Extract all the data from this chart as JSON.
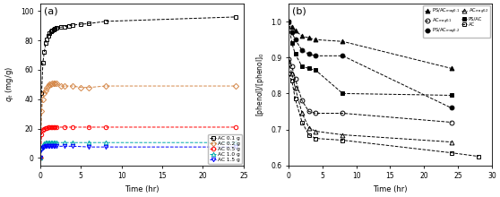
{
  "panel_a": {
    "title": "(a)",
    "xlabel": "Time (hr)",
    "ylabel": "$q_t$ (mg/g)",
    "xlim": [
      0,
      25
    ],
    "ylim": [
      -5,
      105
    ],
    "xticks": [
      0,
      5,
      10,
      15,
      20,
      25
    ],
    "yticks": [
      0,
      20,
      40,
      60,
      80,
      100
    ],
    "series": [
      {
        "label": "AC 0.1 g",
        "color": "black",
        "marker": "s",
        "fillstyle": "none",
        "time": [
          0,
          0.17,
          0.33,
          0.5,
          0.67,
          0.83,
          1.0,
          1.17,
          1.33,
          1.5,
          1.67,
          1.83,
          2.0,
          2.5,
          3.0,
          3.5,
          4.0,
          5.0,
          6.0,
          8.0,
          24.0
        ],
        "qt": [
          0,
          44,
          65,
          72,
          78,
          81,
          83,
          85,
          86,
          87,
          87.5,
          88,
          88.5,
          89,
          89.5,
          90,
          90.5,
          91,
          91.5,
          93,
          96
        ]
      },
      {
        "label": "AC 0.2 g",
        "color": "#d4884a",
        "marker": "D",
        "fillstyle": "none",
        "time": [
          0,
          0.17,
          0.33,
          0.5,
          0.67,
          0.83,
          1.0,
          1.17,
          1.33,
          1.5,
          1.67,
          1.83,
          2.0,
          2.5,
          3.0,
          4.0,
          5.0,
          6.0,
          8.0,
          24.0
        ],
        "qt": [
          0,
          32,
          40,
          44,
          46,
          48,
          49,
          50,
          50.5,
          51,
          51,
          51,
          51,
          49,
          49,
          49,
          48,
          48,
          49,
          49
        ]
      },
      {
        "label": "AC 0.5 g",
        "color": "red",
        "marker": "o",
        "fillstyle": "none",
        "time": [
          0,
          0.17,
          0.33,
          0.5,
          0.67,
          0.83,
          1.0,
          1.17,
          1.33,
          1.5,
          1.67,
          1.83,
          2.0,
          3.0,
          4.0,
          6.0,
          8.0,
          24.0
        ],
        "qt": [
          0,
          16,
          19,
          20,
          20.5,
          20.5,
          21,
          21,
          21,
          21,
          21,
          21,
          21,
          21,
          21,
          21,
          21,
          21
        ]
      },
      {
        "label": "AC 1.0 g",
        "color": "#00aaaa",
        "marker": "^",
        "fillstyle": "none",
        "time": [
          0,
          0.17,
          0.33,
          0.5,
          0.67,
          0.83,
          1.0,
          1.17,
          1.33,
          1.5,
          1.67,
          1.83,
          2.0,
          3.0,
          4.0,
          6.0,
          8.0,
          24.0
        ],
        "qt": [
          0,
          7,
          9,
          10,
          10.5,
          10.5,
          10.5,
          10.5,
          10.5,
          10.5,
          10.5,
          10.5,
          10.5,
          10.5,
          10.5,
          10.5,
          10.5,
          10.5
        ]
      },
      {
        "label": "AC 1.5 g",
        "color": "blue",
        "marker": "v",
        "fillstyle": "none",
        "time": [
          0,
          0.17,
          0.33,
          0.5,
          0.67,
          0.83,
          1.0,
          1.17,
          1.33,
          1.5,
          1.67,
          1.83,
          2.0,
          3.0,
          4.0,
          6.0,
          8.0,
          24.0
        ],
        "qt": [
          0,
          5.5,
          7,
          7.5,
          8,
          8,
          8,
          8,
          8,
          8,
          8,
          8,
          8,
          8,
          8,
          7.5,
          7.5,
          7.5
        ]
      }
    ]
  },
  "panel_b": {
    "title": "(b)",
    "xlabel": "Time (hr)",
    "ylabel": "[phenol]/[phenol]$_0$",
    "xlim": [
      0,
      30
    ],
    "ylim": [
      0.6,
      1.05
    ],
    "xticks": [
      0,
      5,
      10,
      15,
      20,
      25,
      30
    ],
    "yticks": [
      0.6,
      0.7,
      0.8,
      0.9,
      1.0
    ],
    "series": [
      {
        "label": "PS/AC_mag0.1",
        "legend": "PS/AC$_{mag0.1}$",
        "color": "black",
        "marker": "^",
        "fillstyle": "full",
        "time": [
          0,
          0.5,
          1.0,
          2.0,
          3.0,
          4.0,
          8.0,
          24.0
        ],
        "val": [
          1.0,
          0.985,
          0.975,
          0.96,
          0.955,
          0.95,
          0.945,
          0.87
        ]
      },
      {
        "label": "PS/AC_mag0.2",
        "legend": "PS/AC$_{mag0.2}$",
        "color": "black",
        "marker": "o",
        "fillstyle": "full",
        "time": [
          0,
          0.5,
          1.0,
          2.0,
          3.0,
          4.0,
          8.0,
          24.0
        ],
        "val": [
          1.0,
          0.97,
          0.95,
          0.92,
          0.91,
          0.905,
          0.905,
          0.76
        ]
      },
      {
        "label": "PS/AC",
        "legend": "PS/AC",
        "color": "black",
        "marker": "s",
        "fillstyle": "full",
        "time": [
          0,
          0.5,
          1.0,
          2.0,
          3.0,
          4.0,
          8.0,
          24.0
        ],
        "val": [
          1.0,
          0.94,
          0.91,
          0.875,
          0.87,
          0.865,
          0.8,
          0.795
        ]
      },
      {
        "label": "AC_mag0.1",
        "legend": "AC$_{mag0.1}$",
        "color": "black",
        "marker": "o",
        "fillstyle": "none",
        "time": [
          0,
          0.5,
          1.0,
          2.0,
          3.0,
          4.0,
          8.0,
          24.0
        ],
        "val": [
          0.895,
          0.875,
          0.84,
          0.78,
          0.75,
          0.745,
          0.745,
          0.72
        ]
      },
      {
        "label": "AC_mag0.2",
        "legend": "AC$_{mag0.2}$",
        "color": "black",
        "marker": "^",
        "fillstyle": "none",
        "time": [
          0,
          0.5,
          1.0,
          2.0,
          3.0,
          4.0,
          8.0,
          24.0
        ],
        "val": [
          0.89,
          0.855,
          0.815,
          0.745,
          0.705,
          0.695,
          0.685,
          0.665
        ]
      },
      {
        "label": "AC",
        "legend": "AC",
        "color": "black",
        "marker": "s",
        "fillstyle": "none",
        "time": [
          0,
          0.5,
          1.0,
          2.0,
          3.0,
          4.0,
          8.0,
          24.0,
          28.0
        ],
        "val": [
          0.855,
          0.835,
          0.785,
          0.72,
          0.685,
          0.675,
          0.67,
          0.635,
          0.625
        ]
      }
    ]
  }
}
